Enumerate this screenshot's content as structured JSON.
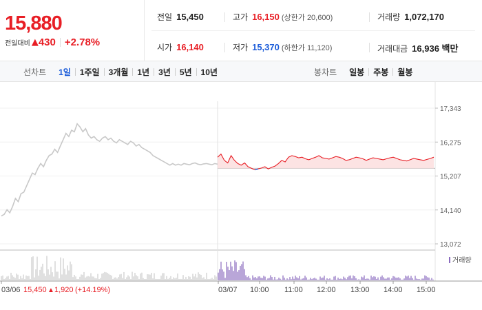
{
  "summary": {
    "price": "15,880",
    "change_label": "전일대비",
    "change_arrow": "▲",
    "change_value": "430",
    "change_rate": "+2.78%"
  },
  "stats": {
    "prev_label": "전일",
    "prev_value": "15,450",
    "high_label": "고가",
    "high_value": "16,150",
    "upper_limit": "(상한가 20,600)",
    "volume_label": "거래량",
    "volume_value": "1,072,170",
    "open_label": "시가",
    "open_value": "16,140",
    "low_label": "저가",
    "low_value": "15,370",
    "lower_limit": "(하한가 11,120)",
    "amount_label": "거래대금",
    "amount_value": "16,936 백만"
  },
  "tabs": {
    "line_title": "선차트",
    "line_tabs": [
      "1일",
      "1주일",
      "3개월",
      "1년",
      "3년",
      "5년",
      "10년"
    ],
    "active_index": 0,
    "candle_title": "봉차트",
    "candle_tabs": [
      "일봉",
      "주봉",
      "월봉"
    ]
  },
  "chart_data": {
    "type": "line",
    "y_ticks": [
      "17,343",
      "16,275",
      "15,207",
      "14,140",
      "13,072"
    ],
    "ylim": [
      13072,
      17343
    ],
    "baseline": 15450,
    "x_labels": [
      "03/06",
      "03/07",
      "10:00",
      "11:00",
      "12:00",
      "13:00",
      "14:00",
      "15:00"
    ],
    "prev_day_note": {
      "price": "15,450",
      "arrow": "▲",
      "change": "1,920",
      "rate": "(+14.19%)"
    },
    "volume_legend": "거래량",
    "colors": {
      "prev_line": "#c8c8c8",
      "up": "#e81e25",
      "down": "#1a5bd9",
      "fill": "#fbdcdc",
      "volume": "#cccccc",
      "volume_today": "#8a6bbf"
    },
    "prev_day_series": [
      13950,
      14000,
      14150,
      14050,
      14250,
      14500,
      14400,
      14650,
      14700,
      14900,
      15100,
      15300,
      15250,
      15450,
      15600,
      15500,
      15700,
      15850,
      15900,
      16050,
      15950,
      16150,
      16350,
      16550,
      16450,
      16650,
      16600,
      16850,
      16750,
      16600,
      16700,
      16500,
      16400,
      16450,
      16350,
      16300,
      16400,
      16450,
      16350,
      16400,
      16300,
      16250,
      16350,
      16300,
      16250,
      16200,
      16300,
      16250,
      16150,
      16200,
      16100,
      16050,
      16000,
      15950,
      15850,
      15800,
      15750,
      15700,
      15650,
      15600,
      15550,
      15600,
      15550,
      15580,
      15550,
      15600,
      15580,
      15560,
      15600,
      15620,
      15580,
      15560,
      15590,
      15600,
      15580,
      15560,
      15600,
      15580
    ],
    "today_series": [
      15800,
      15900,
      15700,
      15620,
      15850,
      15700,
      15600,
      15550,
      15620,
      15500,
      15450,
      15400,
      15430,
      15460,
      15500,
      15430,
      15480,
      15520,
      15600,
      15700,
      15650,
      15800,
      15850,
      15820,
      15780,
      15800,
      15750,
      15720,
      15760,
      15800,
      15850,
      15780,
      15760,
      15740,
      15780,
      15820,
      15800,
      15760,
      15700,
      15720,
      15760,
      15800,
      15780,
      15750,
      15700,
      15740,
      15780,
      15760,
      15740,
      15720,
      15750,
      15780,
      15800,
      15760,
      15720,
      15700,
      15680,
      15720,
      15760,
      15740,
      15720,
      15700,
      15730,
      15760,
      15800
    ]
  }
}
